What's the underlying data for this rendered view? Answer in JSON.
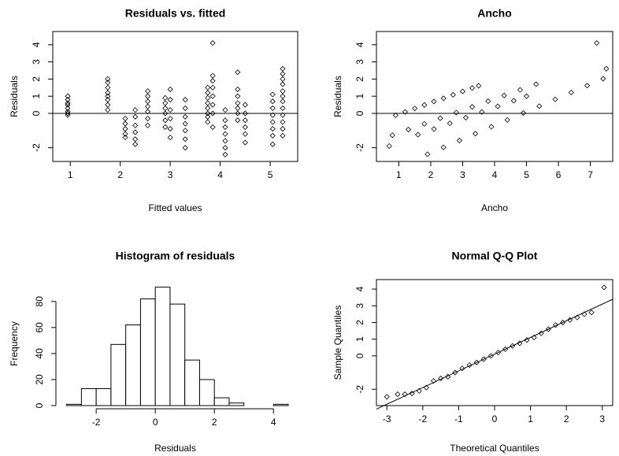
{
  "chart_data": [
    {
      "type": "scatter",
      "title": "Residuals vs. fitted",
      "x_label": "Fitted values",
      "y_label": "Residuals",
      "x": [
        0.95,
        0.95,
        0.95,
        0.95,
        0.95,
        0.95,
        0.95,
        0.95,
        1.75,
        1.75,
        1.75,
        1.75,
        1.75,
        1.75,
        1.75,
        1.75,
        2.1,
        2.1,
        2.1,
        2.1,
        2.1,
        2.3,
        2.3,
        2.3,
        2.3,
        2.3,
        2.3,
        2.55,
        2.55,
        2.55,
        2.55,
        2.55,
        2.55,
        2.55,
        2.9,
        2.9,
        2.9,
        2.9,
        2.9,
        2.9,
        3.0,
        3.0,
        3.0,
        3.0,
        3.0,
        3.0,
        3.3,
        3.3,
        3.3,
        3.3,
        3.3,
        3.3,
        3.3,
        3.75,
        3.75,
        3.75,
        3.75,
        3.75,
        3.75,
        3.75,
        3.75,
        3.85,
        3.85,
        3.85,
        3.85,
        3.85,
        3.85,
        3.85,
        3.85,
        4.1,
        4.1,
        4.1,
        4.1,
        4.1,
        4.1,
        4.1,
        4.35,
        4.35,
        4.35,
        4.35,
        4.35,
        4.35,
        4.35,
        4.5,
        4.5,
        4.5,
        4.5,
        4.5,
        4.5,
        5.05,
        5.05,
        5.05,
        5.05,
        5.05,
        5.05,
        5.05,
        5.05,
        5.25,
        5.25,
        5.25,
        5.25,
        5.25,
        5.25,
        5.25,
        5.25,
        5.25,
        5.25,
        5.25,
        5.25
      ],
      "y": [
        1.0,
        0.8,
        0.6,
        0.5,
        0.3,
        0.1,
        0,
        -0.1,
        2.0,
        1.8,
        1.5,
        1.2,
        1.0,
        0.8,
        0.5,
        0.2,
        -0.3,
        -0.6,
        -0.9,
        -1.2,
        -1.4,
        0.2,
        -0.2,
        -0.7,
        -1.1,
        -1.5,
        -1.8,
        1.3,
        1.0,
        0.7,
        0.4,
        0.1,
        -0.3,
        -0.7,
        0.9,
        0.6,
        0.3,
        0,
        -0.4,
        -0.8,
        1.4,
        0.8,
        0.2,
        -0.3,
        -0.9,
        -1.4,
        0.8,
        0.3,
        -0.2,
        -0.6,
        -1.0,
        -1.5,
        -2.0,
        1.5,
        1.2,
        0.9,
        0.6,
        0.3,
        0,
        -0.2,
        -0.5,
        4.1,
        2.2,
        1.9,
        1.5,
        1.0,
        0.5,
        0,
        -0.8,
        0.2,
        -0.4,
        -0.8,
        -1.2,
        -1.6,
        -2.0,
        -2.4,
        2.4,
        1.4,
        1.0,
        0.6,
        0.3,
        0,
        -0.4,
        0.5,
        0,
        -0.4,
        -0.8,
        -1.2,
        -1.7,
        1.1,
        0.7,
        0.3,
        -0.1,
        -0.5,
        -0.9,
        -1.3,
        -1.8,
        2.6,
        2.3,
        2.0,
        1.7,
        1.3,
        1.0,
        0.7,
        0.3,
        -0.1,
        -0.5,
        -0.9,
        -1.3
      ],
      "xlim": [
        0.65,
        5.55
      ],
      "ylim": [
        -2.8,
        4.77
      ],
      "xticks": [
        1,
        2,
        3,
        4,
        5
      ],
      "yticks": [
        -2,
        0,
        1,
        2,
        3,
        4
      ],
      "hline": 0,
      "color": "#000000"
    },
    {
      "type": "scatter",
      "title": "Ancho",
      "x_label": "Ancho",
      "y_label": "Residuals",
      "x": [
        0.9,
        1.2,
        1.5,
        1.8,
        2.1,
        2.4,
        2.7,
        3.0,
        3.3,
        3.5,
        0.8,
        1.3,
        1.8,
        2.3,
        2.8,
        3.3,
        3.8,
        4.3,
        4.8,
        5.3,
        1.6,
        2.1,
        2.6,
        3.1,
        3.6,
        4.1,
        4.6,
        5.0,
        1.9,
        2.4,
        2.9,
        3.4,
        3.9,
        4.4,
        4.9,
        5.4,
        5.9,
        6.4,
        6.9,
        7.4,
        7.2,
        7.5,
        0.7
      ],
      "y": [
        -0.11,
        0.09,
        0.29,
        0.49,
        0.69,
        0.88,
        1.08,
        1.28,
        1.48,
        1.61,
        -1.27,
        -0.94,
        -0.61,
        -0.28,
        0.05,
        0.38,
        0.71,
        1.04,
        1.37,
        1.7,
        -1.24,
        -0.91,
        -0.58,
        -0.25,
        0.08,
        0.41,
        0.74,
        1.0,
        -2.38,
        -1.98,
        -1.58,
        -1.18,
        -0.78,
        -0.38,
        0.02,
        0.42,
        0.82,
        1.22,
        1.62,
        2.02,
        4.1,
        2.6,
        -1.9
      ],
      "xlim": [
        0.3,
        7.7
      ],
      "ylim": [
        -2.8,
        4.77
      ],
      "xticks": [
        1,
        2,
        3,
        4,
        5,
        6,
        7
      ],
      "yticks": [
        -2,
        0,
        1,
        2,
        3,
        4
      ],
      "hline": 0,
      "color": "#000000"
    },
    {
      "type": "histogram",
      "title": "Histogram of residuals",
      "x_label": "Residuals",
      "y_label": "Frequency",
      "bins": [
        -3,
        -2.5,
        -2,
        -1.5,
        -1,
        -0.5,
        0,
        0.5,
        1,
        1.5,
        2,
        2.5,
        3,
        3.5,
        4,
        4.5
      ],
      "counts": [
        1,
        13,
        13,
        47,
        62,
        82,
        91,
        78,
        35,
        20,
        6,
        2,
        0,
        0,
        1
      ],
      "xlim": [
        -3.47,
        4.82
      ],
      "ylim": [
        0,
        95
      ],
      "xticks": [
        -2,
        0,
        2,
        4
      ],
      "yticks": [
        0,
        20,
        40,
        60,
        80
      ],
      "color": "#ffffff"
    },
    {
      "type": "scatter",
      "title": "Normal Q-Q Plot",
      "x_label": "Theoretical Quantiles",
      "y_label": "Sample Quantiles",
      "x": [
        -3.0,
        -2.7,
        -2.5,
        -2.3,
        -2.1,
        -1.9,
        -1.7,
        -1.5,
        -1.3,
        -1.1,
        -0.9,
        -0.7,
        -0.5,
        -0.3,
        -0.1,
        0.1,
        0.3,
        0.5,
        0.7,
        0.9,
        1.1,
        1.3,
        1.5,
        1.7,
        1.9,
        2.1,
        2.3,
        2.5,
        2.7,
        3.05
      ],
      "y": [
        -2.45,
        -2.3,
        -2.3,
        -2.25,
        -2.1,
        -1.9,
        -1.5,
        -1.35,
        -1.25,
        -1.0,
        -0.75,
        -0.55,
        -0.4,
        -0.2,
        0,
        0.2,
        0.4,
        0.6,
        0.75,
        0.95,
        1.1,
        1.35,
        1.6,
        1.85,
        2.0,
        2.15,
        2.3,
        2.5,
        2.6,
        4.1
      ],
      "xlim": [
        -3.29,
        3.29
      ],
      "ylim": [
        -2.98,
        4.57
      ],
      "xticks": [
        -3,
        -2,
        -1,
        0,
        1,
        2,
        3
      ],
      "yticks": [
        -2,
        0,
        1,
        2,
        3,
        4
      ],
      "qq_line": {
        "intercept": 0.1,
        "slope": 1
      },
      "color": "#000000"
    }
  ]
}
